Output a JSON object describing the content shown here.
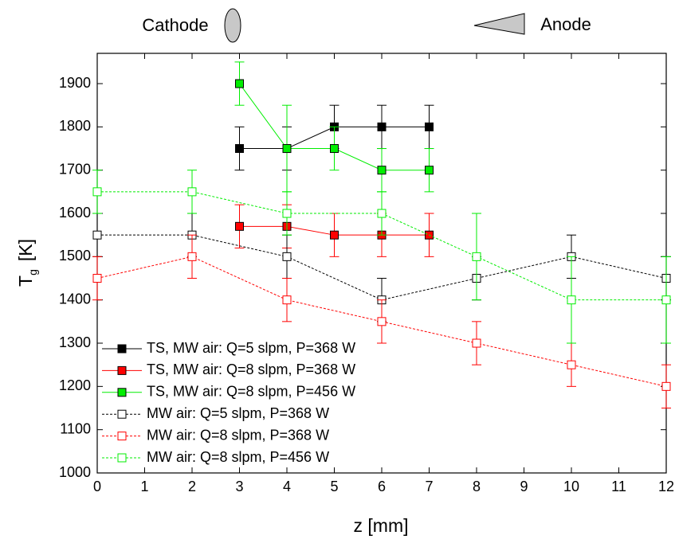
{
  "chart_data": {
    "type": "line",
    "xlabel": "z [mm]",
    "ylabel_parts": [
      "T",
      "g",
      "[K]"
    ],
    "annotations": [
      "Cathode",
      "Anode"
    ],
    "xlim": [
      0,
      12
    ],
    "xticks": [
      0,
      1,
      2,
      3,
      4,
      5,
      6,
      7,
      8,
      9,
      10,
      11,
      12
    ],
    "ylim": [
      1000,
      1970
    ],
    "yticks": [
      1000,
      1100,
      1200,
      1300,
      1400,
      1500,
      1600,
      1700,
      1800,
      1900
    ],
    "legend": "lower-left",
    "series": [
      {
        "name": "TS, MW air: Q=5 slpm, P=368 W",
        "color": "#000000",
        "marker": "filled",
        "line": "solid",
        "x": [
          3,
          4,
          5,
          6,
          7
        ],
        "values": [
          1750,
          1750,
          1800,
          1800,
          1800
        ],
        "errors": [
          50,
          50,
          50,
          50,
          50
        ]
      },
      {
        "name": "TS, MW air: Q=8 slpm, P=368 W",
        "color": "#ff0000",
        "marker": "filled",
        "line": "solid",
        "x": [
          3,
          4,
          5,
          6,
          7
        ],
        "values": [
          1570,
          1570,
          1550,
          1550,
          1550
        ],
        "errors": [
          50,
          50,
          50,
          50,
          50
        ]
      },
      {
        "name": "TS, MW air: Q=8 slpm, P=456 W",
        "color": "#00ee00",
        "marker": "filled",
        "line": "solid",
        "x": [
          3,
          4,
          5,
          6,
          7
        ],
        "values": [
          1900,
          1750,
          1750,
          1700,
          1700
        ],
        "errors": [
          50,
          100,
          50,
          50,
          50
        ]
      },
      {
        "name": "MW air: Q=5 slpm, P=368 W",
        "color": "#000000",
        "marker": "open",
        "line": "dashed",
        "x": [
          0,
          2,
          4,
          6,
          8,
          10,
          12
        ],
        "values": [
          1550,
          1550,
          1500,
          1400,
          1450,
          1500,
          1450
        ],
        "errors": [
          50,
          50,
          50,
          50,
          50,
          50,
          50
        ]
      },
      {
        "name": "MW air: Q=8 slpm, P=368 W",
        "color": "#ff0000",
        "marker": "open",
        "line": "dashed",
        "x": [
          0,
          2,
          4,
          6,
          8,
          10,
          12
        ],
        "values": [
          1450,
          1500,
          1400,
          1350,
          1300,
          1250,
          1200
        ],
        "errors": [
          50,
          50,
          50,
          50,
          50,
          50,
          50
        ]
      },
      {
        "name": "MW air: Q=8 slpm, P=456 W",
        "color": "#00ee00",
        "marker": "open",
        "line": "dashed",
        "x": [
          0,
          2,
          4,
          6,
          8,
          10,
          12
        ],
        "values": [
          1650,
          1650,
          1600,
          1600,
          1500,
          1400,
          1400
        ],
        "errors": [
          50,
          50,
          50,
          50,
          100,
          100,
          100
        ]
      }
    ]
  }
}
